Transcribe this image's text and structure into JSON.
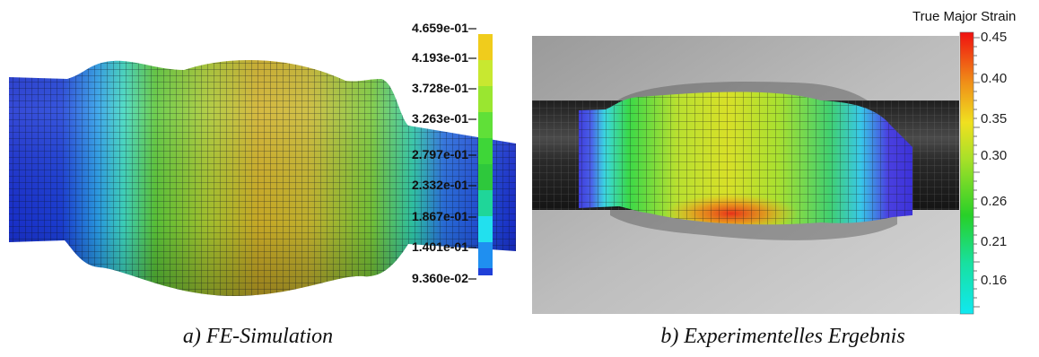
{
  "fe_simulation": {
    "caption": "a) FE-Simulation",
    "colors": [
      "#1f3fd8",
      "#1f8ff0",
      "#22e0ee",
      "#1fd699",
      "#2ec83c",
      "#3ed638",
      "#60e038",
      "#9ae630",
      "#c8e830",
      "#f0cc1c"
    ],
    "legend_labels": [
      "4.659e-01",
      "4.193e-01",
      "3.728e-01",
      "3.263e-01",
      "2.797e-01",
      "2.332e-01",
      "1.867e-01",
      "1.401e-01",
      "9.360e-02"
    ]
  },
  "experiment": {
    "caption": "b) Experimentelles Ergebnis",
    "colorbar_title": "True Major Strain",
    "colorbar_ticks": [
      "0.45",
      "0.40",
      "0.35",
      "0.30",
      "0.26",
      "0.21",
      "0.16"
    ]
  }
}
